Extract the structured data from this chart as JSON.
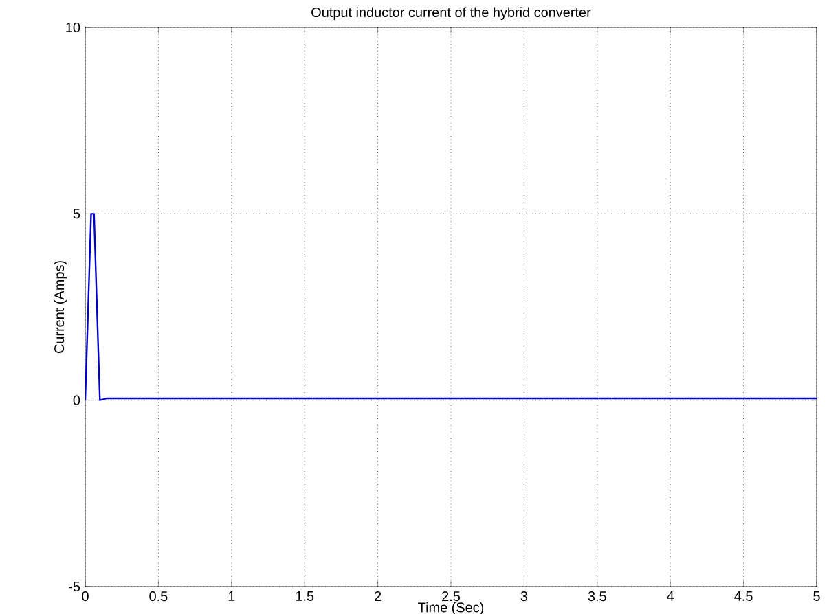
{
  "chart_data": {
    "type": "line",
    "title": "Output inductor current of the hybrid converter",
    "xlabel": "Time (Sec)",
    "ylabel": "Current (Amps)",
    "series": [
      {
        "color": "#0000c8",
        "x": [
          0,
          0.04,
          0.06,
          0.1,
          0.15,
          1,
          2,
          3,
          4,
          5
        ],
        "values": [
          0,
          5,
          5,
          0,
          0.05,
          0.05,
          0.05,
          0.05,
          0.05,
          0.05
        ]
      }
    ],
    "xlim": [
      0,
      5
    ],
    "ylim": [
      -5,
      10
    ],
    "xticks": [
      0,
      0.5,
      1,
      1.5,
      2,
      2.5,
      3,
      3.5,
      4,
      4.5,
      5
    ],
    "yticks": [
      -5,
      0,
      5,
      10
    ],
    "grid": true,
    "line_style": "solid",
    "marker": "none"
  }
}
